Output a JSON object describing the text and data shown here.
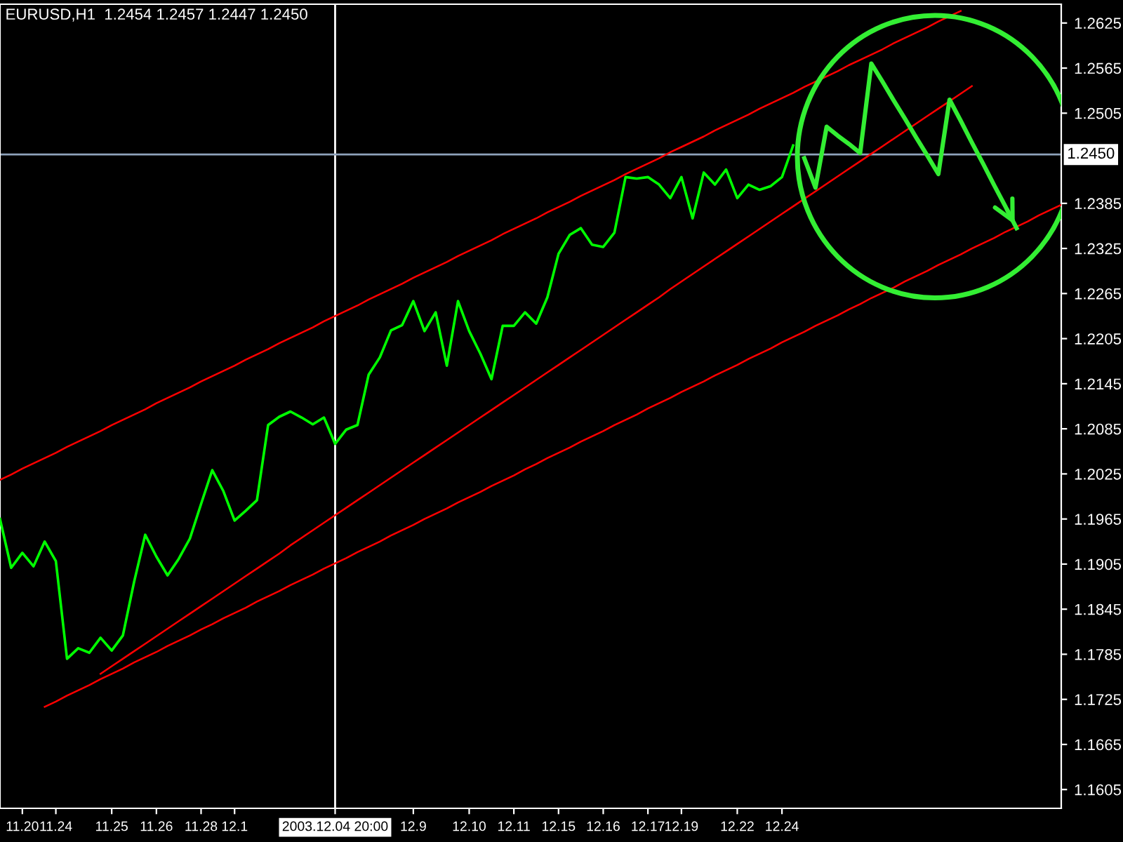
{
  "chart_data": {
    "type": "line",
    "title": "EURUSD,H1  1.2454 1.2457 1.2447 1.2450",
    "categories": [
      null,
      null,
      "11.20",
      null,
      null,
      "11.24",
      null,
      null,
      null,
      null,
      "11.25",
      null,
      null,
      null,
      "11.26",
      null,
      null,
      null,
      "11.28",
      null,
      null,
      "12.1",
      null,
      null,
      null,
      null,
      null,
      null,
      null,
      null,
      "2003.12.04 20:00",
      null,
      null,
      null,
      null,
      null,
      null,
      "12.9",
      null,
      null,
      null,
      null,
      "12.10",
      null,
      null,
      null,
      "12.11",
      null,
      null,
      null,
      "12.15",
      null,
      null,
      null,
      "12.16",
      null,
      null,
      null,
      "12.17",
      null,
      null,
      "12.19",
      null,
      null,
      null,
      null,
      "12.22",
      null,
      null,
      null,
      "12.24",
      null,
      null,
      null,
      null,
      null,
      null,
      null,
      null,
      null,
      null,
      null,
      null,
      null,
      null,
      null,
      null,
      null,
      null,
      null,
      null,
      null,
      null,
      null,
      null,
      null
    ],
    "ylim": [
      1.158,
      1.265
    ],
    "yticks": [
      1.1605,
      1.1665,
      1.1725,
      1.1785,
      1.1845,
      1.1905,
      1.1965,
      1.2025,
      1.2085,
      1.2145,
      1.2205,
      1.2265,
      1.2325,
      1.2385,
      1.2505,
      1.2565,
      1.2625
    ],
    "grid": false,
    "legend": false,
    "line_style": "solid",
    "series": [
      {
        "color": "#00ff00",
        "values": [
          1.1965,
          1.19,
          1.192,
          1.1902,
          1.1935,
          1.1909,
          1.1779,
          1.1793,
          1.1787,
          1.1807,
          1.179,
          1.181,
          1.1881,
          1.1944,
          1.1915,
          1.189,
          1.1912,
          1.1939,
          1.1985,
          1.203,
          1.2002,
          1.1963,
          1.1976,
          1.199,
          1.209,
          1.2101,
          1.2108,
          1.21,
          1.2091,
          1.21,
          1.2065,
          1.2084,
          1.209,
          1.2157,
          1.218,
          1.2216,
          1.2223,
          1.2255,
          1.2215,
          1.224,
          1.2169,
          1.2255,
          1.2215,
          1.2185,
          1.2151,
          1.2222,
          1.2222,
          1.224,
          1.2225,
          1.226,
          1.2318,
          1.2343,
          1.2352,
          1.233,
          1.2327,
          1.2346,
          1.242,
          1.2418,
          1.242,
          1.241,
          1.2392,
          1.242,
          1.2365,
          1.2426,
          1.241,
          1.243,
          1.2392,
          1.241,
          1.2403,
          1.2408,
          1.242,
          1.2462,
          null,
          null,
          null,
          null,
          null,
          null,
          null,
          null,
          null,
          null,
          null,
          null,
          null,
          null,
          null,
          null,
          null,
          null,
          null,
          null,
          null,
          null,
          null,
          null
        ]
      },
      {
        "color": "#ff0000",
        "values": [
          1.2017,
          1.2024,
          1.2032,
          1.2039,
          1.2046,
          1.2053,
          1.2061,
          1.2068,
          1.2075,
          1.2082,
          1.209,
          1.2097,
          1.2104,
          1.2111,
          1.2119,
          1.2126,
          1.2133,
          1.214,
          1.2148,
          1.2155,
          1.2162,
          1.2169,
          1.2177,
          1.2184,
          1.2191,
          1.2199,
          1.2206,
          1.2213,
          1.222,
          1.2228,
          1.2235,
          1.2242,
          1.2249,
          1.2257,
          1.2264,
          1.2271,
          1.2278,
          1.2286,
          1.2293,
          1.23,
          1.2307,
          1.2315,
          1.2322,
          1.2329,
          1.2336,
          1.2344,
          1.2351,
          1.2358,
          1.2365,
          1.2373,
          1.238,
          1.2387,
          1.2395,
          1.2402,
          1.2409,
          1.2416,
          1.2424,
          1.2431,
          1.2438,
          1.2445,
          1.2453,
          1.246,
          1.2467,
          1.2474,
          1.2482,
          1.2489,
          1.2496,
          1.2503,
          1.2511,
          1.2518,
          1.2525,
          1.2532,
          1.254,
          1.2547,
          1.2554,
          1.2561,
          1.2569,
          1.2576,
          1.2583,
          1.259,
          1.2598,
          1.2605,
          1.2612,
          1.2619,
          1.2627,
          1.2634,
          1.2641,
          null,
          null,
          null,
          null,
          null,
          null,
          null,
          null,
          null
        ]
      },
      {
        "color": "#ff0000",
        "values": [
          null,
          null,
          null,
          null,
          null,
          null,
          null,
          null,
          null,
          1.1759,
          1.1769,
          1.1779,
          1.1789,
          1.1799,
          1.1809,
          1.1819,
          1.1829,
          1.1839,
          1.1849,
          1.1859,
          1.1869,
          1.1879,
          1.1889,
          1.1899,
          1.1909,
          1.1919,
          1.193,
          1.194,
          1.195,
          1.196,
          1.197,
          1.198,
          1.199,
          1.2,
          1.201,
          1.202,
          1.203,
          1.204,
          1.205,
          1.206,
          1.207,
          1.208,
          1.209,
          1.21,
          1.211,
          1.212,
          1.213,
          1.214,
          1.215,
          1.216,
          1.217,
          1.218,
          1.219,
          1.22,
          1.221,
          1.222,
          1.223,
          1.224,
          1.225,
          1.226,
          1.2271,
          1.2281,
          1.2291,
          1.2301,
          1.2311,
          1.2321,
          1.2331,
          1.2341,
          1.2351,
          1.2361,
          1.2371,
          1.2381,
          1.2391,
          1.2401,
          1.2411,
          1.2421,
          1.2431,
          1.2441,
          1.2451,
          1.2461,
          1.2471,
          1.2481,
          1.2491,
          1.2501,
          1.2511,
          1.2521,
          1.2531,
          1.2541,
          null,
          null,
          null,
          null,
          null,
          null,
          null,
          null
        ]
      },
      {
        "color": "#ff0000",
        "values": [
          null,
          null,
          null,
          null,
          1.1715,
          1.1722,
          1.173,
          1.1737,
          1.1744,
          1.1752,
          1.1759,
          1.1766,
          1.1774,
          1.1781,
          1.1788,
          1.1796,
          1.1803,
          1.181,
          1.1818,
          1.1825,
          1.1833,
          1.184,
          1.1847,
          1.1855,
          1.1862,
          1.1869,
          1.1877,
          1.1884,
          1.1891,
          1.1899,
          1.1906,
          1.1913,
          1.1921,
          1.1928,
          1.1935,
          1.1943,
          1.195,
          1.1957,
          1.1965,
          1.1972,
          1.1979,
          1.1987,
          1.1994,
          1.2001,
          1.2009,
          1.2016,
          1.2023,
          1.2031,
          1.2038,
          1.2046,
          1.2053,
          1.206,
          1.2068,
          1.2075,
          1.2082,
          1.209,
          1.2097,
          1.2104,
          1.2112,
          1.2119,
          1.2126,
          1.2134,
          1.2141,
          1.2148,
          1.2156,
          1.2163,
          1.217,
          1.2178,
          1.2185,
          1.2192,
          1.22,
          1.2207,
          1.2214,
          1.2222,
          1.2229,
          1.2236,
          1.2244,
          1.2251,
          1.2259,
          1.2266,
          1.2273,
          1.2281,
          1.2288,
          1.2295,
          1.2303,
          1.231,
          1.2317,
          1.2325,
          1.2332,
          1.2339,
          1.2347,
          1.2354,
          1.2361,
          1.2369,
          1.2376,
          1.2383
        ]
      },
      {
        "color": "#33ee33",
        "values": [
          null,
          null,
          null,
          null,
          null,
          null,
          null,
          null,
          null,
          null,
          null,
          null,
          null,
          null,
          null,
          null,
          null,
          null,
          null,
          null,
          null,
          null,
          null,
          null,
          null,
          null,
          null,
          null,
          null,
          null,
          null,
          null,
          null,
          null,
          null,
          null,
          null,
          null,
          null,
          null,
          null,
          null,
          null,
          null,
          null,
          null,
          null,
          null,
          null,
          null,
          null,
          null,
          null,
          null,
          null,
          null,
          null,
          null,
          null,
          null,
          null,
          null,
          null,
          null,
          null,
          null,
          null,
          null,
          null,
          null,
          null,
          null,
          1.2445,
          1.2406,
          1.2487,
          1.2475,
          1.2464,
          1.2452,
          1.2571,
          1.2547,
          1.2522,
          1.2498,
          1.2473,
          1.2449,
          1.2424,
          1.2523,
          1.2495,
          1.2466,
          1.2438,
          1.2409,
          1.2381,
          1.2352,
          null,
          null,
          null,
          null
        ]
      }
    ],
    "ref_lines": [
      {
        "axis": "x",
        "value": "2003.12.04 20:00",
        "color": "#ffffff"
      },
      {
        "axis": "y",
        "value": 1.245,
        "label": "1.2450",
        "color": "#8fa3bc"
      }
    ]
  }
}
